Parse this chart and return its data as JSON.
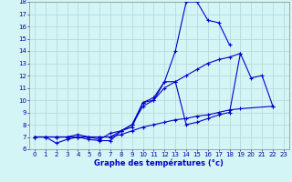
{
  "title": "Graphe des températures (°c)",
  "bg_color": "#d4f5f5",
  "grid_color": "#b8dada",
  "line_color": "#0000cc",
  "xlim": [
    -0.5,
    23.5
  ],
  "ylim": [
    6,
    18
  ],
  "xticks": [
    0,
    1,
    2,
    3,
    4,
    5,
    6,
    7,
    8,
    9,
    10,
    11,
    12,
    13,
    14,
    15,
    16,
    17,
    18,
    19,
    20,
    21,
    22,
    23
  ],
  "yticks": [
    6,
    7,
    8,
    9,
    10,
    11,
    12,
    13,
    14,
    15,
    16,
    17,
    18
  ],
  "series": [
    [
      7.0,
      7.0,
      6.5,
      6.8,
      7.0,
      6.8,
      6.7,
      6.7,
      7.5,
      8.0,
      9.8,
      10.0,
      11.5,
      14.0,
      18.0,
      18.0,
      16.5,
      16.3,
      14.5,
      null,
      null,
      null,
      null,
      null
    ],
    [
      7.0,
      7.0,
      7.0,
      7.0,
      7.2,
      7.0,
      6.8,
      7.3,
      7.5,
      7.8,
      9.8,
      10.2,
      11.5,
      11.5,
      8.0,
      8.2,
      8.5,
      8.8,
      9.0,
      13.8,
      11.8,
      12.0,
      9.5,
      null
    ],
    [
      7.0,
      7.0,
      7.0,
      7.0,
      7.0,
      7.0,
      7.0,
      7.0,
      7.5,
      8.0,
      9.5,
      10.0,
      11.0,
      11.5,
      12.0,
      12.5,
      13.0,
      13.3,
      13.5,
      13.8,
      null,
      null,
      null,
      null
    ],
    [
      7.0,
      7.0,
      7.0,
      7.0,
      7.0,
      7.0,
      7.0,
      7.0,
      7.2,
      7.5,
      7.8,
      8.0,
      8.2,
      8.4,
      8.5,
      8.7,
      8.8,
      9.0,
      9.2,
      9.3,
      null,
      null,
      9.5,
      null
    ]
  ]
}
